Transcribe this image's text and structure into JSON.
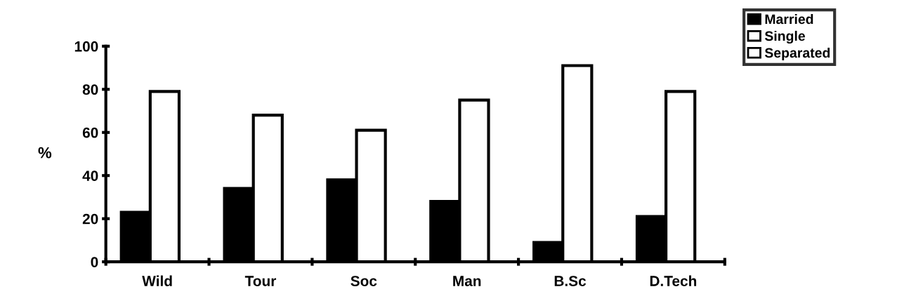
{
  "chart_data": {
    "type": "bar",
    "ylabel": "%",
    "categories": [
      "Wild",
      "Tour",
      "Soc",
      "Man",
      "B.Sc",
      "D.Tech"
    ],
    "series": [
      {
        "name": "Married",
        "color": "#000000",
        "values": [
          23,
          34,
          38,
          28,
          9,
          21
        ]
      },
      {
        "name": "Single",
        "color": "#ffffff",
        "values": [
          79,
          68,
          61,
          75,
          91,
          79
        ]
      },
      {
        "name": "Separated",
        "color": "#ffffff",
        "values": [
          null,
          null,
          null,
          null,
          null,
          null
        ]
      }
    ],
    "ylim": [
      0,
      100
    ],
    "yticks": [
      0,
      20,
      40,
      60,
      80,
      100
    ],
    "grid": false,
    "legend": "top right"
  }
}
